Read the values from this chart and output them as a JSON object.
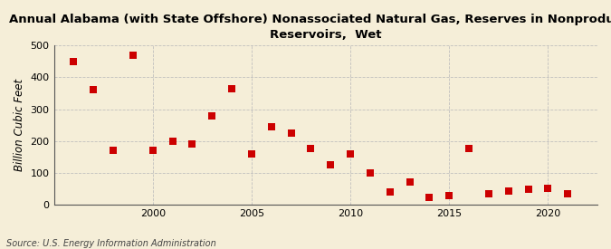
{
  "title": "Annual Alabama (with State Offshore) Nonassociated Natural Gas, Reserves in Nonproducing\nReservoirs,  Wet",
  "ylabel": "Billion Cubic Feet",
  "source": "Source: U.S. Energy Information Administration",
  "years": [
    1996,
    1997,
    1998,
    1999,
    2000,
    2001,
    2002,
    2003,
    2004,
    2005,
    2006,
    2007,
    2008,
    2009,
    2010,
    2011,
    2012,
    2013,
    2014,
    2015,
    2016,
    2017,
    2018,
    2019,
    2020,
    2021
  ],
  "values": [
    450,
    360,
    170,
    470,
    170,
    200,
    190,
    280,
    365,
    160,
    245,
    225,
    175,
    125,
    160,
    100,
    40,
    72,
    22,
    28,
    175,
    35,
    43,
    48,
    50,
    35
  ],
  "marker_color": "#cc0000",
  "background_color": "#f5eed8",
  "plot_bg_color": "#f5eed8",
  "grid_color": "#bbbbbb",
  "ylim": [
    0,
    500
  ],
  "yticks": [
    0,
    100,
    200,
    300,
    400,
    500
  ],
  "xticks": [
    2000,
    2005,
    2010,
    2015,
    2020
  ],
  "xlim": [
    1995.0,
    2022.5
  ],
  "title_fontsize": 9.5,
  "label_fontsize": 8.5,
  "tick_fontsize": 8,
  "source_fontsize": 7,
  "marker_size": 36
}
